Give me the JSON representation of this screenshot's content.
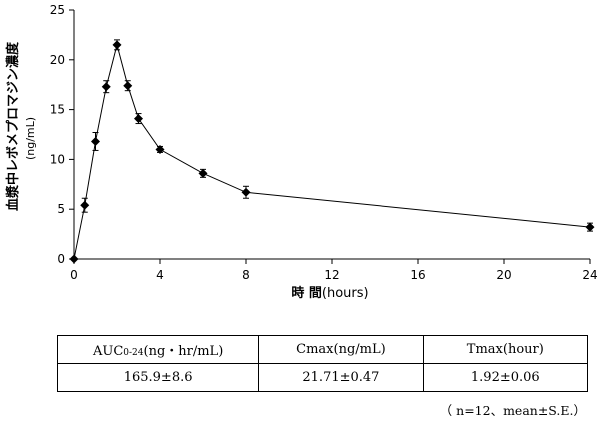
{
  "chart_data": {
    "type": "line",
    "title": "",
    "xlabel": "時 間",
    "xlabel_unit": "(hours)",
    "ylabel": "血漿中レボメプロマジン濃度",
    "ylabel_unit": "(ng/mL)",
    "xlim": [
      0,
      24
    ],
    "ylim": [
      0,
      25
    ],
    "xticks": [
      0,
      4,
      8,
      12,
      16,
      20,
      24
    ],
    "yticks": [
      0,
      5,
      10,
      15,
      20,
      25
    ],
    "grid": false,
    "legend": "none",
    "marker": "diamond",
    "series": [
      {
        "x": [
          0,
          0.5,
          1,
          1.5,
          2,
          2.5,
          3,
          4,
          6,
          8,
          24
        ],
        "y": [
          0,
          5.4,
          11.8,
          17.3,
          21.5,
          17.4,
          14.1,
          11.0,
          8.6,
          6.7,
          3.2
        ],
        "err": [
          0,
          0.7,
          0.9,
          0.6,
          0.5,
          0.5,
          0.5,
          0.3,
          0.4,
          0.6,
          0.4
        ]
      }
    ]
  },
  "table": {
    "headers": [
      {
        "main": "AUC",
        "sub": "0-24",
        "rest": "(ng・hr/mL)"
      },
      {
        "main": "Cmax(ng/mL)",
        "sub": "",
        "rest": ""
      },
      {
        "main": "Tmax(hour)",
        "sub": "",
        "rest": ""
      }
    ],
    "values": [
      "165.9±8.6",
      "21.71±0.47",
      "1.92±0.06"
    ]
  },
  "footnote": "（ n=12、mean±S.E.）"
}
